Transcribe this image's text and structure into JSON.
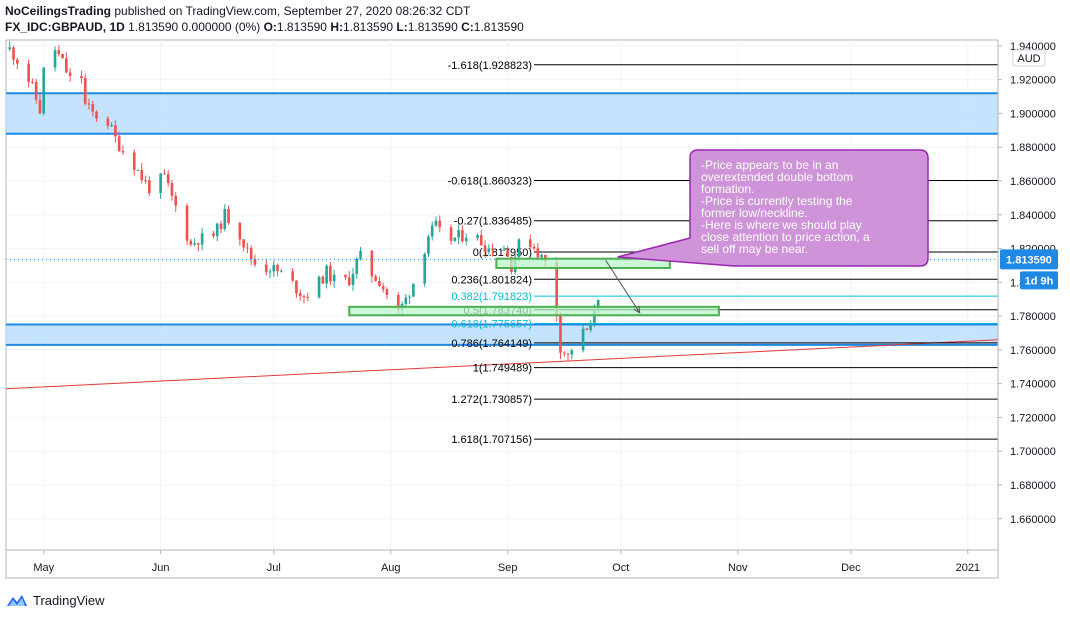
{
  "header": {
    "author": "NoCeilingsTrading",
    "published": " published on TradingView.com, September 27, 2020 08:26:32 CDT",
    "symbol": "FX_IDC:GBPAUD, 1D",
    "values_prefix": " 1.813590 0.000000 (0%) ",
    "o_label": "O:",
    "o_value": "1.813590 ",
    "h_label": "H:",
    "h_value": "1.813590 ",
    "l_label": "L:",
    "l_value": "1.813590 ",
    "c_label": "C:",
    "c_value": "1.813590"
  },
  "footer": {
    "brand": "TradingView"
  },
  "colors": {
    "up": "#26a69a",
    "down": "#ef5350",
    "zone_fill": "#bbdefb",
    "zone_line": "#1e88e5",
    "box_fill": "#ce93d8",
    "box_border": "#9c27b0",
    "green_fill": "#b9f6ca",
    "green_line": "#4caf50",
    "fib_cyan": "#00bcd4",
    "trend": "#e53935",
    "price_tag": "#1e88e5"
  },
  "chart_data": {
    "type": "candlestick",
    "symbol": "FX_IDC:GBPAUD",
    "timeframe": "1D",
    "currency": "AUD",
    "x_axis": {
      "labels": [
        {
          "date": "2020-05-01",
          "label": "May"
        },
        {
          "date": "2020-06-01",
          "label": "Jun"
        },
        {
          "date": "2020-07-01",
          "label": "Jul"
        },
        {
          "date": "2020-08-01",
          "label": "Aug"
        },
        {
          "date": "2020-09-01",
          "label": "Sep"
        },
        {
          "date": "2020-10-01",
          "label": "Oct"
        },
        {
          "date": "2020-11-01",
          "label": "Nov"
        },
        {
          "date": "2020-12-01",
          "label": "Dec"
        },
        {
          "date": "2021-01-01",
          "label": "2021"
        }
      ],
      "range": [
        "2020-04-21",
        "2021-01-09"
      ]
    },
    "y_axis": {
      "range": [
        1.6415,
        1.9435
      ],
      "ticks": [
        "1.940000",
        "1.920000",
        "1.900000",
        "1.880000",
        "1.860000",
        "1.840000",
        "1.820000",
        "1.800000",
        "1.780000",
        "1.760000",
        "1.740000",
        "1.720000",
        "1.700000",
        "1.680000",
        "1.660000"
      ]
    },
    "grid": true,
    "last_price": {
      "label": "1.813590",
      "value": 1.81359,
      "countdown": "1d 9h"
    },
    "price_path": [
      [
        "2020-04-22",
        1.938
      ],
      [
        "2020-04-24",
        1.932
      ],
      [
        "2020-04-27",
        1.92
      ],
      [
        "2020-04-28",
        1.915
      ],
      [
        "2020-04-30",
        1.902
      ],
      [
        "2020-05-01",
        1.925
      ],
      [
        "2020-05-04",
        1.938
      ],
      [
        "2020-05-06",
        1.93
      ],
      [
        "2020-05-08",
        1.92
      ],
      [
        "2020-05-11",
        1.922
      ],
      [
        "2020-05-12",
        1.905
      ],
      [
        "2020-05-14",
        1.9
      ],
      [
        "2020-05-18",
        1.895
      ],
      [
        "2020-05-20",
        1.885
      ],
      [
        "2020-05-22",
        1.878
      ],
      [
        "2020-05-25",
        1.87
      ],
      [
        "2020-05-27",
        1.862
      ],
      [
        "2020-05-29",
        1.856
      ],
      [
        "2020-06-02",
        1.862
      ],
      [
        "2020-06-04",
        1.85
      ],
      [
        "2020-06-07",
        1.834
      ],
      [
        "2020-06-09",
        1.822
      ],
      [
        "2020-06-11",
        1.826
      ],
      [
        "2020-06-14",
        1.825
      ],
      [
        "2020-06-16",
        1.831
      ],
      [
        "2020-06-18",
        1.84
      ],
      [
        "2020-06-21",
        1.834
      ],
      [
        "2020-06-24",
        1.818
      ],
      [
        "2020-06-27",
        1.808
      ],
      [
        "2020-06-30",
        1.809
      ],
      [
        "2020-07-03",
        1.805
      ],
      [
        "2020-07-06",
        1.799
      ],
      [
        "2020-07-09",
        1.792
      ],
      [
        "2020-07-12",
        1.797
      ],
      [
        "2020-07-15",
        1.806
      ],
      [
        "2020-07-18",
        1.799
      ],
      [
        "2020-07-21",
        1.802
      ],
      [
        "2020-07-23",
        1.812
      ],
      [
        "2020-07-25",
        1.818
      ],
      [
        "2020-07-27",
        1.805
      ],
      [
        "2020-07-29",
        1.801
      ],
      [
        "2020-07-31",
        1.793
      ],
      [
        "2020-08-03",
        1.782
      ],
      [
        "2020-08-05",
        1.79
      ],
      [
        "2020-08-07",
        1.8
      ],
      [
        "2020-08-09",
        1.813
      ],
      [
        "2020-08-11",
        1.828
      ],
      [
        "2020-08-13",
        1.833
      ],
      [
        "2020-08-15",
        1.825
      ],
      [
        "2020-08-18",
        1.826
      ],
      [
        "2020-08-21",
        1.829
      ],
      [
        "2020-08-24",
        1.826
      ],
      [
        "2020-08-27",
        1.82
      ],
      [
        "2020-08-30",
        1.826
      ],
      [
        "2020-09-02",
        1.81
      ],
      [
        "2020-09-04",
        1.822
      ],
      [
        "2020-09-07",
        1.824
      ],
      [
        "2020-09-09",
        1.818
      ],
      [
        "2020-09-11",
        1.811
      ],
      [
        "2020-09-13",
        1.797
      ],
      [
        "2020-09-14",
        1.782
      ],
      [
        "2020-09-15",
        1.762
      ],
      [
        "2020-09-17",
        1.756
      ],
      [
        "2020-09-19",
        1.766
      ],
      [
        "2020-09-21",
        1.77
      ],
      [
        "2020-09-23",
        1.773
      ],
      [
        "2020-09-24",
        1.785
      ],
      [
        "2020-09-26",
        1.8
      ],
      [
        "2020-09-27",
        1.81359
      ]
    ],
    "fib_levels": [
      {
        "ratio": "-1.618",
        "value": 1.928823,
        "label": "-1.618(1.928823)"
      },
      {
        "ratio": "-0.618",
        "value": 1.860323,
        "label": "-0.618(1.860323)"
      },
      {
        "ratio": "-0.27",
        "value": 1.836485,
        "label": "-0.27(1.836485)"
      },
      {
        "ratio": "0",
        "value": 1.81795,
        "label": "0(1.817950)"
      },
      {
        "ratio": "0.236",
        "value": 1.801824,
        "label": "0.236(1.801824)"
      },
      {
        "ratio": "0.382",
        "value": 1.791823,
        "label": "0.382(1.791823)",
        "color": "cyan"
      },
      {
        "ratio": "0.5",
        "value": 1.78374,
        "label": "0.5(1.783740)"
      },
      {
        "ratio": "0.618",
        "value": 1.775657,
        "label": "0.618(1.775657)",
        "color": "cyan"
      },
      {
        "ratio": "0.786",
        "value": 1.764149,
        "label": "0.786(1.764149)"
      },
      {
        "ratio": "1",
        "value": 1.749489,
        "label": "1(1.749489)"
      },
      {
        "ratio": "1.272",
        "value": 1.730857,
        "label": "1.272(1.730857)"
      },
      {
        "ratio": "1.618",
        "value": 1.707156,
        "label": "1.618(1.707156)"
      }
    ],
    "zones": [
      {
        "from": 1.888,
        "to": 1.912
      },
      {
        "from": 1.763,
        "to": 1.775
      }
    ],
    "rectangles": [
      {
        "x0": "2020-08-29",
        "x1": "2020-10-14",
        "y0": 1.8085,
        "y1": 1.814
      },
      {
        "x0": "2020-07-21",
        "x1": "2020-10-27",
        "y0": 1.7805,
        "y1": 1.7855
      }
    ],
    "trendline": [
      [
        "2020-04-21",
        1.737
      ],
      [
        "2021-01-09",
        1.766
      ]
    ],
    "arrow": [
      [
        "2020-09-27",
        1.813
      ],
      [
        "2020-10-06",
        1.782
      ]
    ],
    "annotation": {
      "lines": [
        "-Price appears to be in an",
        "overextended double bottom",
        "formation.",
        "-Price is currently testing the",
        "former low/neckline.",
        "-Here is where we should play",
        "close attention to price action, a",
        "sell off may be near."
      ]
    }
  }
}
